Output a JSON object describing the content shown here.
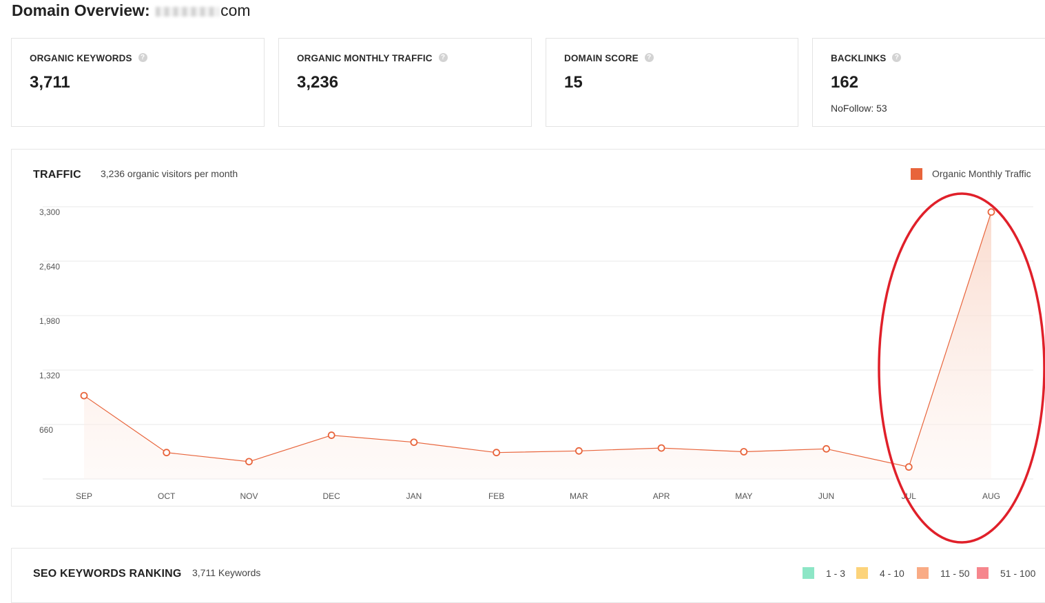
{
  "header": {
    "title_prefix": "Domain Overview:",
    "domain_suffix": "com"
  },
  "stats": [
    {
      "label": "ORGANIC KEYWORDS",
      "value": "3,711"
    },
    {
      "label": "ORGANIC MONTHLY TRAFFIC",
      "value": "3,236"
    },
    {
      "label": "DOMAIN SCORE",
      "value": "15"
    },
    {
      "label": "BACKLINKS",
      "value": "162",
      "sub": "NoFollow: 53"
    }
  ],
  "help_icon": "help-circle-icon",
  "traffic": {
    "heading": "TRAFFIC",
    "subtitle": "3,236 organic visitors per month",
    "legend_label": "Organic Monthly Traffic",
    "legend_color": "#e8643b"
  },
  "chart_data": {
    "type": "line",
    "x": [
      "SEP",
      "OCT",
      "NOV",
      "DEC",
      "JAN",
      "FEB",
      "MAR",
      "APR",
      "MAY",
      "JUN",
      "JUL",
      "AUG"
    ],
    "series": [
      {
        "name": "Organic Monthly Traffic",
        "values": [
          1010,
          320,
          210,
          530,
          445,
          320,
          340,
          375,
          330,
          365,
          145,
          3236
        ]
      }
    ],
    "yticks": [
      "3,300",
      "2,640",
      "1,980",
      "1,320",
      "660"
    ],
    "ylim": [
      0,
      3300
    ],
    "grid": true,
    "legend": "top-right",
    "colors": {
      "line": "#e8643b",
      "fill": "#fbe3d9"
    }
  },
  "seo_keywords": {
    "heading": "SEO KEYWORDS RANKING",
    "subtitle": "3,711 Keywords",
    "ranges": [
      {
        "label": "1 - 3",
        "color": "#8de6c6"
      },
      {
        "label": "4 - 10",
        "color": "#fcd37a"
      },
      {
        "label": "11 - 50",
        "color": "#f9ab85"
      },
      {
        "label": "51 - 100",
        "color": "#f6868d"
      }
    ]
  },
  "annotation": {
    "color": "#e0202a"
  }
}
